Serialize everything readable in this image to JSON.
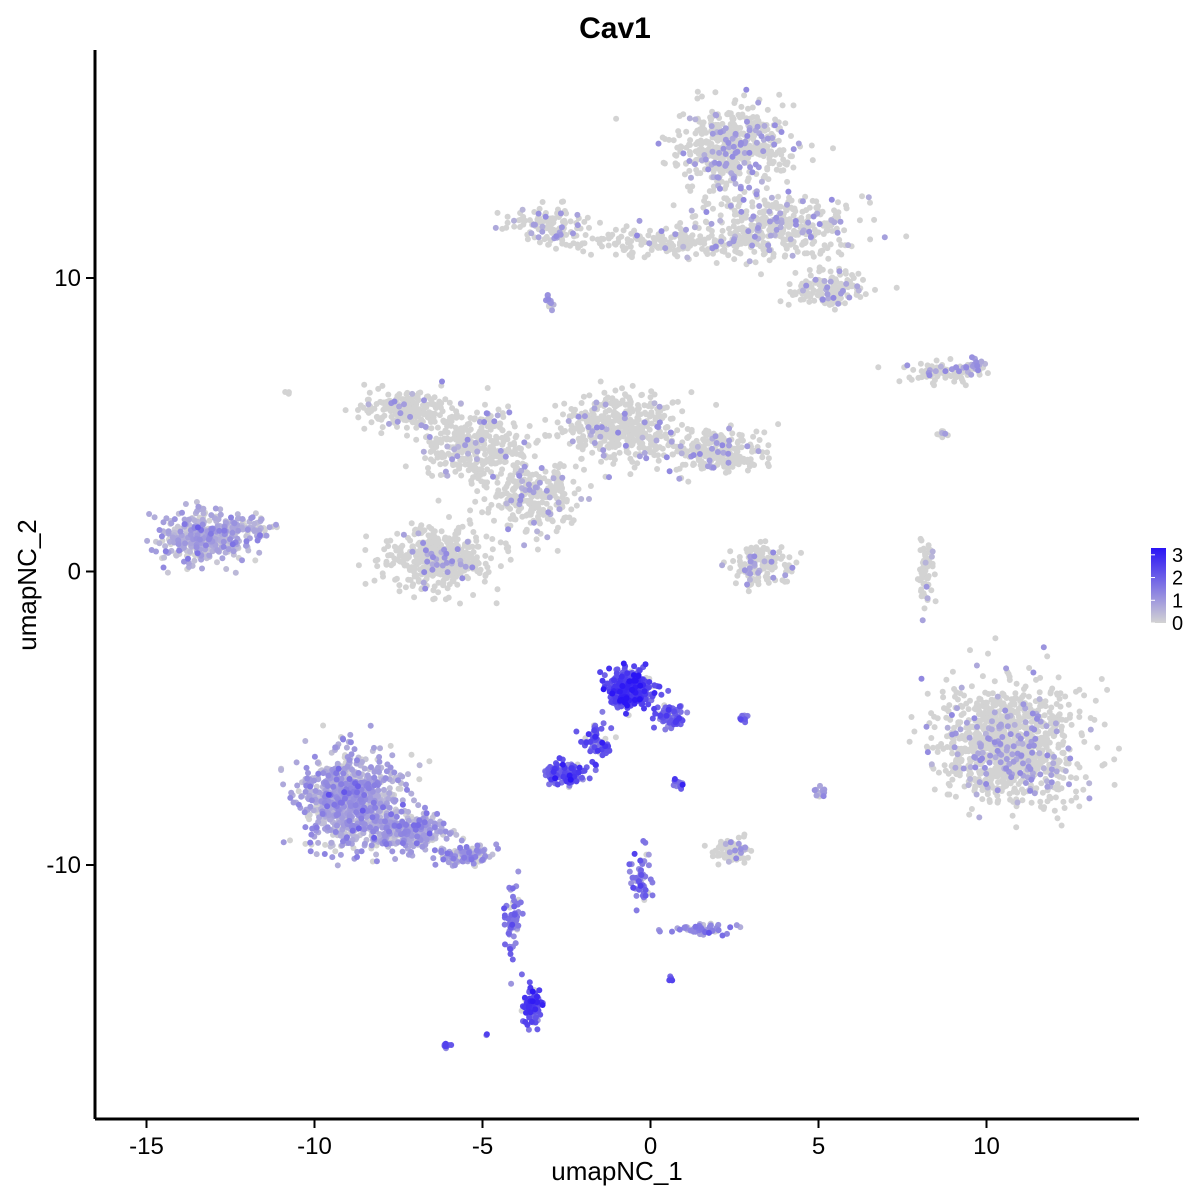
{
  "chart_data": {
    "type": "scatter",
    "title": "Cav1",
    "xlabel": "umapNC_1",
    "ylabel": "umapNC_2",
    "xlim": [
      -16.5,
      14.5
    ],
    "ylim": [
      -18.5,
      17.5
    ],
    "x_ticks": [
      -15,
      -10,
      -5,
      0,
      5,
      10
    ],
    "y_ticks": [
      -10,
      0,
      10
    ],
    "x_tick_labels": [
      "-15",
      "-10",
      "-5",
      "0",
      "5",
      "10"
    ],
    "y_tick_labels": [
      "-10",
      "0",
      "10"
    ],
    "grid": false,
    "color_scale": {
      "low_color": "#d3d3d3",
      "high_color": "#2a14f5",
      "min": 0,
      "max": 3.3,
      "ticks": [
        0,
        1,
        2,
        3
      ],
      "tick_labels": [
        "0",
        "1",
        "2",
        "3"
      ],
      "position": "right"
    },
    "clusters": [
      {
        "x": 2.5,
        "y": 14.5,
        "sx": 1.4,
        "sy": 1.1,
        "n": 500,
        "expr": 0.05
      },
      {
        "x": 3.8,
        "y": 11.8,
        "sx": 2.2,
        "sy": 1.0,
        "n": 350,
        "expr": 0.05
      },
      {
        "x": 1.0,
        "y": 11.2,
        "sx": 3.2,
        "sy": 0.35,
        "n": 220,
        "expr": 0.04
      },
      {
        "x": -3.0,
        "y": 11.8,
        "sx": 1.0,
        "sy": 0.5,
        "n": 120,
        "expr": 0.05
      },
      {
        "x": 5.3,
        "y": 9.6,
        "sx": 0.9,
        "sy": 0.5,
        "n": 150,
        "expr": 0.05
      },
      {
        "x": -7.3,
        "y": 5.5,
        "sx": 1.0,
        "sy": 0.5,
        "n": 220,
        "expr": 0.03
      },
      {
        "x": -5.3,
        "y": 4.3,
        "sx": 1.3,
        "sy": 1.0,
        "n": 350,
        "expr": 0.03
      },
      {
        "x": -6.3,
        "y": 0.4,
        "sx": 1.2,
        "sy": 0.8,
        "n": 450,
        "expr": 0.03
      },
      {
        "x": -3.5,
        "y": 2.6,
        "sx": 1.2,
        "sy": 0.9,
        "n": 280,
        "expr": 0.03
      },
      {
        "x": -0.9,
        "y": 4.9,
        "sx": 1.4,
        "sy": 0.9,
        "n": 420,
        "expr": 0.03
      },
      {
        "x": 1.9,
        "y": 4.1,
        "sx": 1.3,
        "sy": 0.6,
        "n": 250,
        "expr": 0.04
      },
      {
        "x": -13.3,
        "y": 1.2,
        "sx": 1.0,
        "sy": 0.7,
        "n": 400,
        "expr": 0.55
      },
      {
        "x": -11.8,
        "y": 1.5,
        "sx": 0.5,
        "sy": 0.4,
        "n": 60,
        "expr": 0.5
      },
      {
        "x": 3.3,
        "y": 0.2,
        "sx": 0.7,
        "sy": 0.6,
        "n": 150,
        "expr": 0.04
      },
      {
        "x": 8.8,
        "y": 6.8,
        "sx": 1.1,
        "sy": 0.25,
        "n": 110,
        "expr": 0.05
      },
      {
        "x": 8.2,
        "y": -0.1,
        "sx": 0.22,
        "sy": 0.9,
        "n": 60,
        "expr": 0.03
      },
      {
        "x": 10.7,
        "y": -5.9,
        "sx": 1.7,
        "sy": 1.6,
        "n": 1100,
        "expr": 0.04
      },
      {
        "x": -0.6,
        "y": -4.0,
        "sx": 0.55,
        "sy": 0.5,
        "n": 380,
        "expr": 2.4
      },
      {
        "x": 0.6,
        "y": -4.9,
        "sx": 0.35,
        "sy": 0.35,
        "n": 70,
        "expr": 2.0
      },
      {
        "x": -1.6,
        "y": -5.8,
        "sx": 0.35,
        "sy": 0.6,
        "n": 60,
        "expr": 2.0
      },
      {
        "x": -2.5,
        "y": -6.9,
        "sx": 0.45,
        "sy": 0.3,
        "n": 130,
        "expr": 2.1
      },
      {
        "x": -8.9,
        "y": -7.8,
        "sx": 1.2,
        "sy": 1.3,
        "n": 900,
        "expr": 0.75
      },
      {
        "x": -7.2,
        "y": -8.9,
        "sx": 0.9,
        "sy": 0.5,
        "n": 250,
        "expr": 0.8
      },
      {
        "x": -5.5,
        "y": -9.7,
        "sx": 0.7,
        "sy": 0.3,
        "n": 100,
        "expr": 0.9
      },
      {
        "x": -4.1,
        "y": -12.0,
        "sx": 0.25,
        "sy": 1.2,
        "n": 60,
        "expr": 1.6
      },
      {
        "x": -3.5,
        "y": -14.8,
        "sx": 0.22,
        "sy": 0.5,
        "n": 100,
        "expr": 2.2
      },
      {
        "x": -0.3,
        "y": -10.5,
        "sx": 0.25,
        "sy": 0.8,
        "n": 60,
        "expr": 1.6
      },
      {
        "x": 1.4,
        "y": -12.2,
        "sx": 0.8,
        "sy": 0.18,
        "n": 60,
        "expr": 1.2
      },
      {
        "x": 2.4,
        "y": -9.5,
        "sx": 0.45,
        "sy": 0.35,
        "n": 80,
        "expr": 0.06
      },
      {
        "x": 5.1,
        "y": -7.5,
        "sx": 0.15,
        "sy": 0.2,
        "n": 20,
        "expr": 0.6
      },
      {
        "x": 2.8,
        "y": -5.0,
        "sx": 0.15,
        "sy": 0.1,
        "n": 12,
        "expr": 1.8
      },
      {
        "x": 0.8,
        "y": -7.2,
        "sx": 0.15,
        "sy": 0.15,
        "n": 10,
        "expr": 1.8
      },
      {
        "x": -6.1,
        "y": -16.2,
        "sx": 0.1,
        "sy": 0.1,
        "n": 8,
        "expr": 1.8
      },
      {
        "x": 0.6,
        "y": -13.9,
        "sx": 0.08,
        "sy": 0.08,
        "n": 5,
        "expr": 1.8
      },
      {
        "x": -4.9,
        "y": -15.8,
        "sx": 0.05,
        "sy": 0.05,
        "n": 2,
        "expr": 1.8
      },
      {
        "x": -10.8,
        "y": 6.1,
        "sx": 0.05,
        "sy": 0.05,
        "n": 3,
        "expr": 0.03
      },
      {
        "x": -3.0,
        "y": 9.2,
        "sx": 0.1,
        "sy": 0.3,
        "n": 12,
        "expr": 0.2
      },
      {
        "x": 9.7,
        "y": 7.1,
        "sx": 0.2,
        "sy": 0.15,
        "n": 15,
        "expr": 0.3
      },
      {
        "x": 8.7,
        "y": 4.7,
        "sx": 0.2,
        "sy": 0.15,
        "n": 10,
        "expr": 0.03
      }
    ]
  }
}
